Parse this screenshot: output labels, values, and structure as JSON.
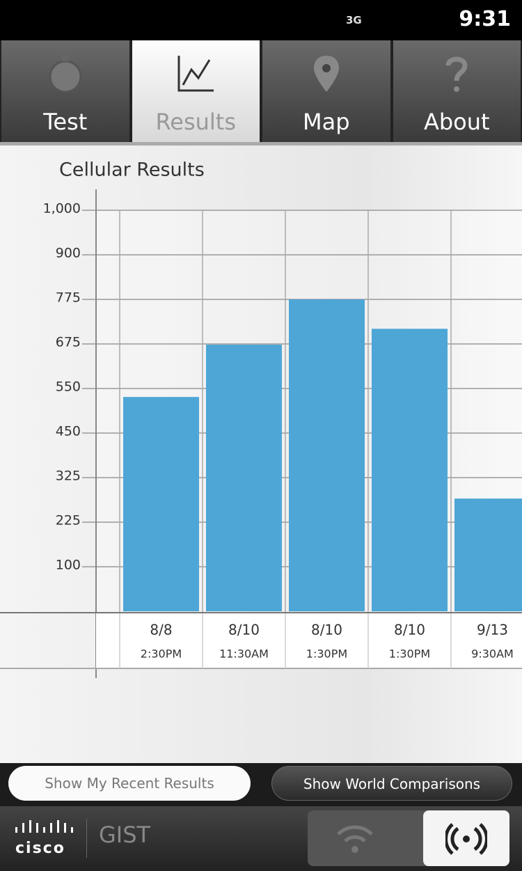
{
  "status": {
    "network": "3G",
    "time": "9:31"
  },
  "tabs": [
    "Test",
    "Results",
    "Map",
    "About"
  ],
  "chart_data": {
    "type": "bar",
    "title": "Cellular Results",
    "categories": [
      "8/8",
      "8/10",
      "8/10",
      "8/10",
      "9/13"
    ],
    "times": [
      "2:30PM",
      "11:30AM",
      "1:30PM",
      "1:30PM",
      "9:30AM"
    ],
    "values": [
      531,
      673,
      775,
      709,
      278
    ],
    "color": "#4ea6d6",
    "ylim": [
      0,
      1000
    ],
    "yticks": [
      100,
      225,
      325,
      450,
      550,
      675,
      775,
      900,
      {
        "value": 1000,
        "label": "1,000"
      }
    ],
    "grid": true
  },
  "buttons": [
    "Show My Recent Results",
    "Show World Comparisons"
  ],
  "footer": {
    "brand": "cisco",
    "app": "GIST"
  }
}
